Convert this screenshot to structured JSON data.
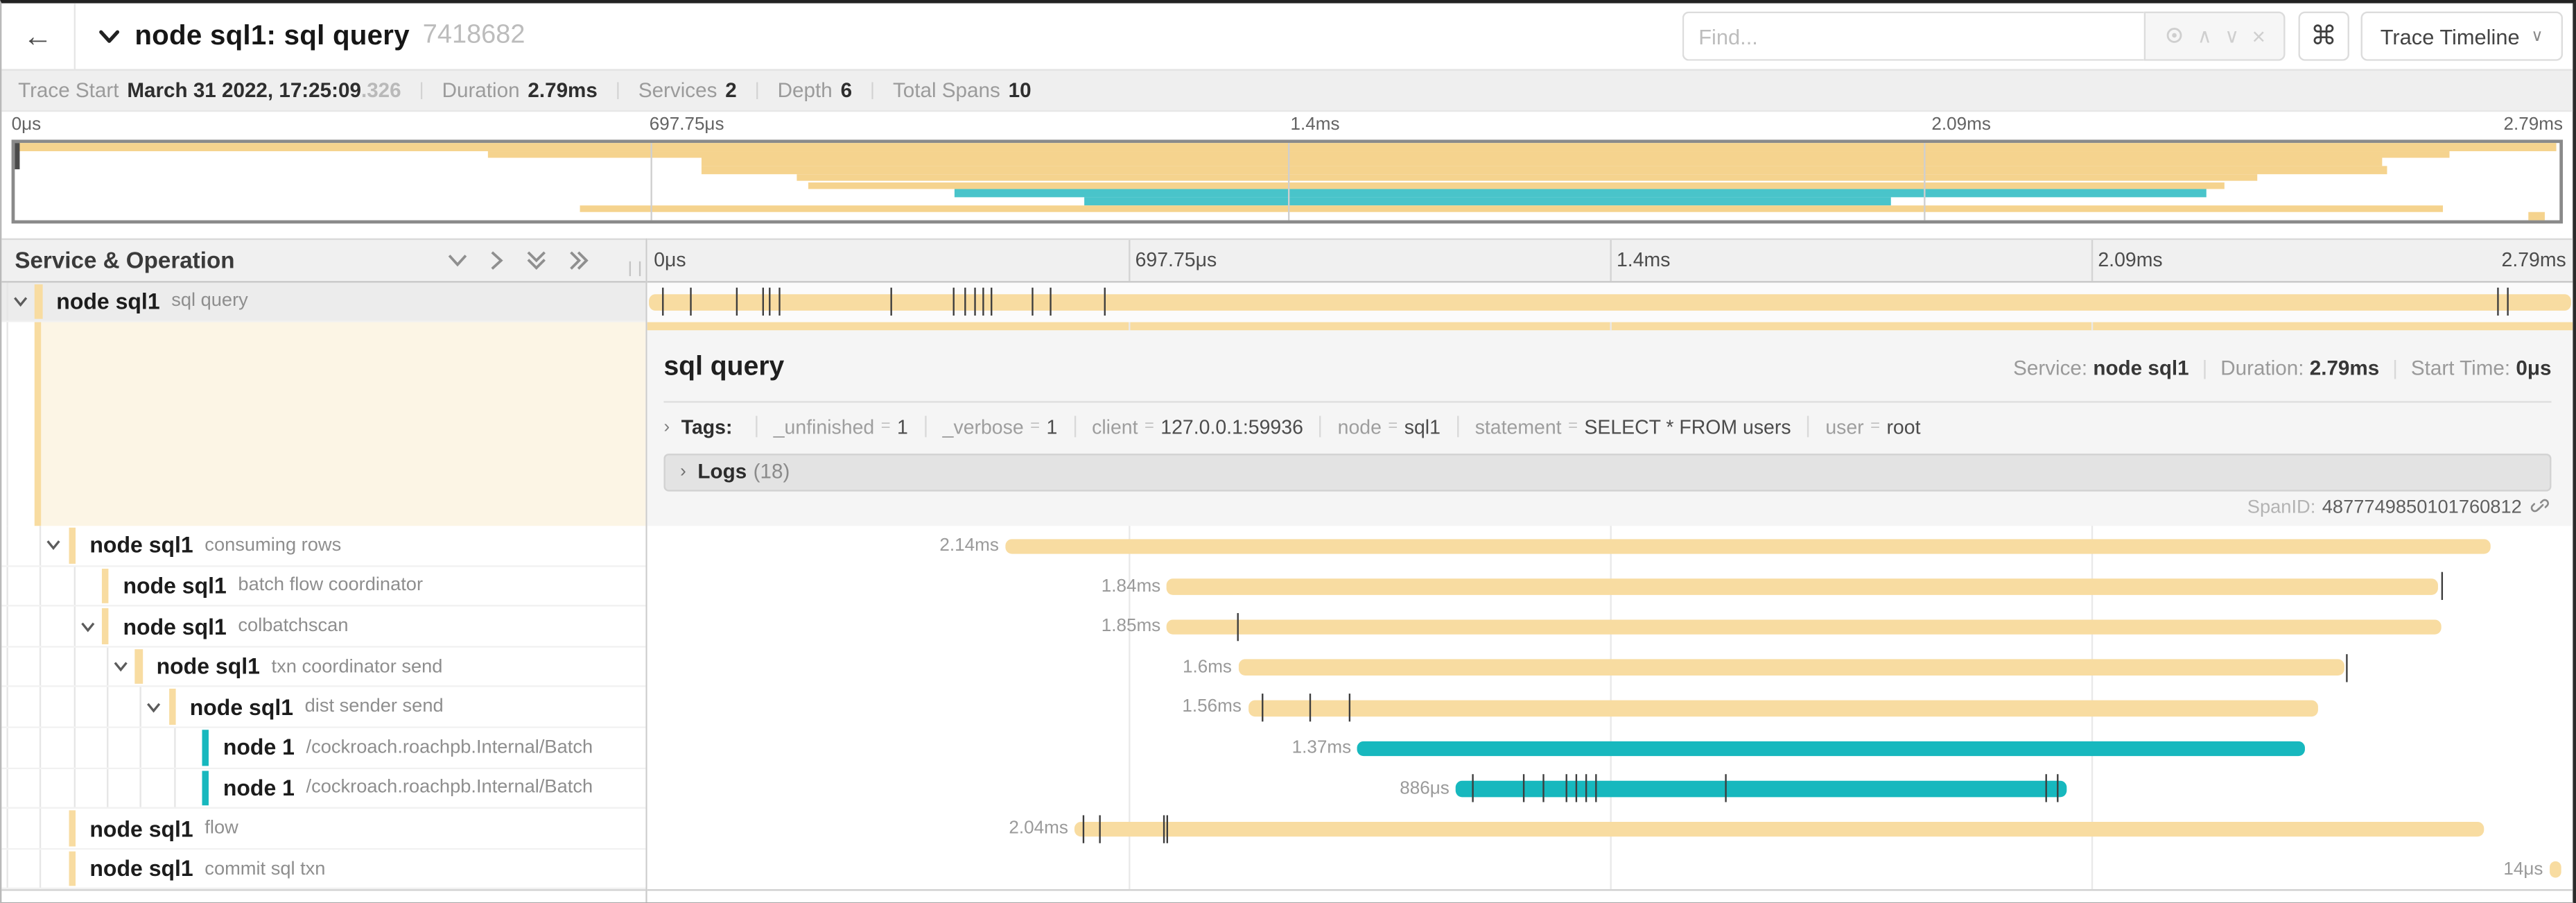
{
  "header": {
    "back": "←",
    "title": "node sql1: sql query",
    "trace_id": "7418682",
    "find_placeholder": "Find...",
    "find_tools": [
      "locate-icon",
      "prev-icon",
      "next-icon",
      "clear-icon"
    ],
    "keyboard_button": "⌘",
    "view_button": "Trace Timeline"
  },
  "meta": [
    {
      "label": "Trace Start",
      "value": "March 31 2022, 17:25:09",
      "suffix": ".326"
    },
    {
      "label": "Duration",
      "value": "2.79ms",
      "suffix": ""
    },
    {
      "label": "Services",
      "value": "2",
      "suffix": ""
    },
    {
      "label": "Depth",
      "value": "6",
      "suffix": ""
    },
    {
      "label": "Total Spans",
      "value": "10",
      "suffix": ""
    }
  ],
  "ticks": [
    "0μs",
    "697.75μs",
    "1.4ms",
    "2.09ms",
    "2.79ms"
  ],
  "left_header": {
    "title": "Service & Operation"
  },
  "colors": {
    "tan": "#F8DCA1",
    "tan_mini": "#F5D globalization38E",
    "teal": "#17B8BE",
    "teal_mini": "#49C4CA",
    "cream": "#FCF5E5",
    "detail_bg": "#F5F5F5",
    "selected_row": "#ECECEC"
  },
  "spans": [
    {
      "service": "node sql1",
      "operation": "sql query",
      "level": 0,
      "color": "tan",
      "start_pct": 0.1,
      "end_pct": 99.9,
      "duration": "2.79ms",
      "show_label": false,
      "has_children": true,
      "expanded": true,
      "selected": true,
      "ticks": [
        0.8,
        2.2,
        4.6,
        6.0,
        6.3,
        6.8,
        12.6,
        15.9,
        16.5,
        17.0,
        17.4,
        17.8,
        20.0,
        20.9,
        23.7,
        96.1,
        96.6
      ]
    },
    {
      "service": "node sql1",
      "operation": "consuming rows",
      "level": 1,
      "color": "tan",
      "start_pct": 18.6,
      "end_pct": 95.7,
      "duration": "2.14ms",
      "show_label": true,
      "has_children": true,
      "expanded": true,
      "selected": false,
      "ticks": []
    },
    {
      "service": "node sql1",
      "operation": "batch flow coordinator",
      "level": 2,
      "color": "tan",
      "start_pct": 27.0,
      "end_pct": 93.0,
      "duration": "1.84ms",
      "show_label": true,
      "has_children": false,
      "expanded": false,
      "selected": false,
      "ticks": [
        93.2
      ]
    },
    {
      "service": "node sql1",
      "operation": "colbatchscan",
      "level": 2,
      "color": "tan",
      "start_pct": 27.0,
      "end_pct": 93.2,
      "duration": "1.85ms",
      "show_label": true,
      "has_children": true,
      "expanded": true,
      "selected": false,
      "ticks": [
        30.6
      ]
    },
    {
      "service": "node sql1",
      "operation": "txn coordinator send",
      "level": 3,
      "color": "tan",
      "start_pct": 30.7,
      "end_pct": 88.1,
      "duration": "1.6ms",
      "show_label": true,
      "has_children": true,
      "expanded": true,
      "selected": false,
      "ticks": [
        88.2
      ]
    },
    {
      "service": "node sql1",
      "operation": "dist sender send",
      "level": 4,
      "color": "tan",
      "start_pct": 31.2,
      "end_pct": 86.8,
      "duration": "1.56ms",
      "show_label": true,
      "has_children": true,
      "expanded": true,
      "selected": false,
      "ticks": [
        31.9,
        34.4,
        36.4
      ]
    },
    {
      "service": "node 1",
      "operation": "/cockroach.roachpb.Internal/Batch",
      "level": 5,
      "color": "teal",
      "start_pct": 36.9,
      "end_pct": 86.1,
      "duration": "1.37ms",
      "show_label": true,
      "has_children": false,
      "expanded": false,
      "selected": false,
      "ticks": []
    },
    {
      "service": "node 1",
      "operation": "/cockroach.roachpb.Internal/Batch",
      "level": 5,
      "color": "teal",
      "start_pct": 42.0,
      "end_pct": 73.7,
      "duration": "886μs",
      "show_label": true,
      "has_children": false,
      "expanded": false,
      "selected": false,
      "ticks": [
        42.8,
        45.5,
        46.5,
        47.7,
        48.2,
        48.7,
        49.2,
        56.0,
        72.6,
        73.2
      ]
    },
    {
      "service": "node sql1",
      "operation": "flow",
      "level": 1,
      "color": "tan",
      "start_pct": 22.2,
      "end_pct": 95.4,
      "duration": "2.04ms",
      "show_label": true,
      "has_children": false,
      "expanded": false,
      "selected": false,
      "ticks": [
        22.6,
        23.5,
        26.8,
        27.0
      ]
    },
    {
      "service": "node sql1",
      "operation": "commit sql txn",
      "level": 1,
      "color": "tan",
      "start_pct": 98.8,
      "end_pct": 99.4,
      "duration": "14μs",
      "show_label": true,
      "has_children": false,
      "expanded": false,
      "selected": false,
      "ticks": []
    }
  ],
  "detail": {
    "title": "sql query",
    "service_label": "Service:",
    "service": "node sql1",
    "duration_label": "Duration:",
    "duration": "2.79ms",
    "start_label": "Start Time:",
    "start": "0μs",
    "tags_label": "Tags:",
    "tags": [
      {
        "key": "_unfinished",
        "value": "1"
      },
      {
        "key": "_verbose",
        "value": "1"
      },
      {
        "key": "client",
        "value": "127.0.0.1:59936"
      },
      {
        "key": "node",
        "value": "sql1"
      },
      {
        "key": "statement",
        "value": "SELECT * FROM users"
      },
      {
        "key": "user",
        "value": "root"
      }
    ],
    "logs_label": "Logs",
    "logs_count": "(18)",
    "span_id_label": "SpanID:",
    "span_id": "4877749850101760812"
  }
}
